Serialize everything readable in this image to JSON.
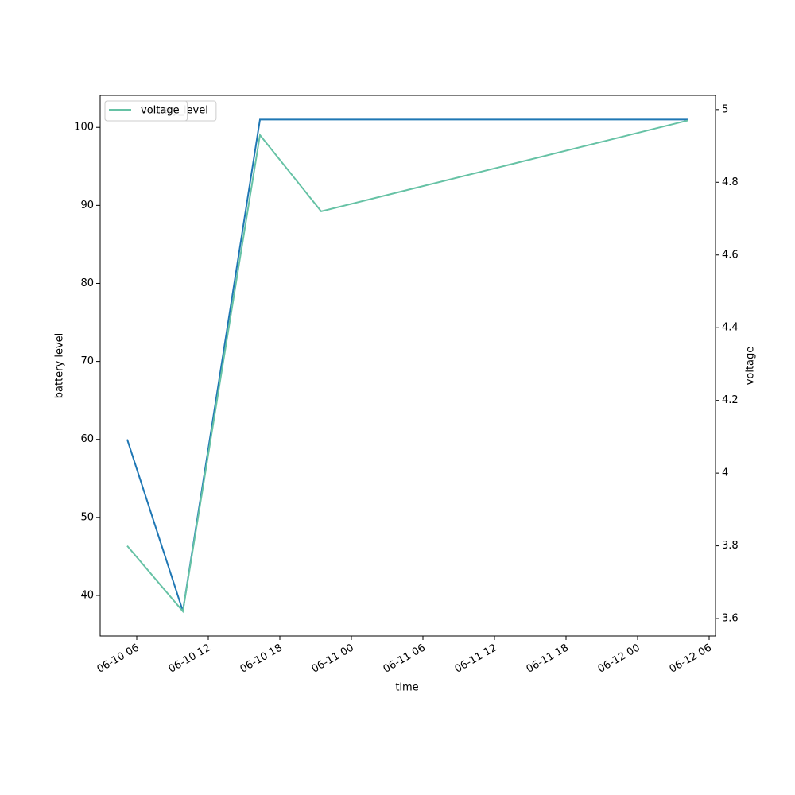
{
  "chart_data": {
    "type": "line",
    "x_label": "time",
    "y_label": "battery level",
    "y2_label": "voltage",
    "x": [
      "06-10 05:12",
      "06-10 09:52",
      "06-10 16:20",
      "06-10 21:28",
      "06-12 04:12"
    ],
    "xlim": [
      "06-10 02:56",
      "06-12 06:32"
    ],
    "xticks": [
      "06-10 06",
      "06-10 12",
      "06-10 18",
      "06-11 00",
      "06-11 06",
      "06-11 12",
      "06-11 18",
      "06-12 00",
      "06-12 06"
    ],
    "ylim": [
      34.8,
      104.1
    ],
    "yticks": [
      40,
      50,
      60,
      70,
      80,
      90,
      100
    ],
    "y2lim": [
      3.552,
      5.039
    ],
    "y2ticks": [
      3.6,
      3.8,
      4.0,
      4.2,
      4.4,
      4.6,
      4.8,
      5.0
    ],
    "series": [
      {
        "name": "battery_level",
        "color": "#1f77b4",
        "values": [
          60,
          38,
          101,
          101,
          101
        ]
      },
      {
        "name": "voltage",
        "color": "#66c2a5",
        "axis": "y2",
        "values": [
          3.8,
          3.62,
          4.93,
          4.72,
          4.97
        ]
      }
    ]
  }
}
